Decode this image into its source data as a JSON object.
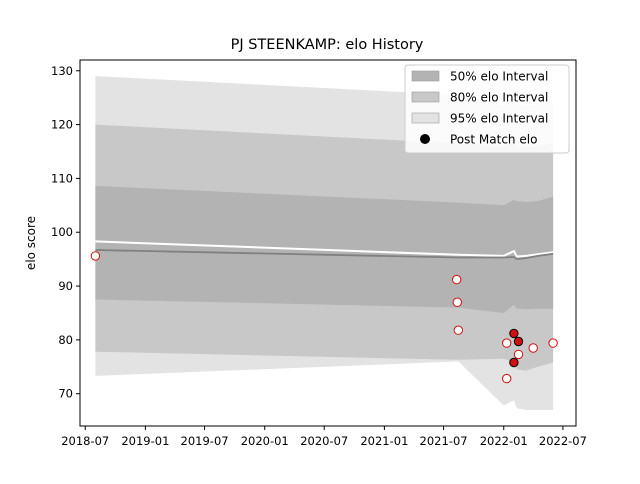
{
  "chart_data": {
    "type": "line",
    "title": "PJ STEENKAMP: elo History",
    "xlabel": "",
    "ylabel": "elo score",
    "xlim": [
      "2018-06-15",
      "2022-08-10"
    ],
    "ylim": [
      64,
      132
    ],
    "x_ticks": [
      "2018-07-01",
      "2019-01-01",
      "2019-07-01",
      "2020-01-01",
      "2020-07-01",
      "2021-01-01",
      "2021-07-01",
      "2022-01-01",
      "2022-07-01"
    ],
    "x_tick_labels": [
      "2018-07",
      "2019-01",
      "2019-07",
      "2020-01",
      "2020-07",
      "2021-01",
      "2021-07",
      "2022-01",
      "2022-07"
    ],
    "y_ticks": [
      70,
      80,
      90,
      100,
      110,
      120,
      130
    ],
    "y_tick_labels": [
      "70",
      "80",
      "90",
      "100",
      "110",
      "120",
      "130"
    ],
    "legend_position": "top-right",
    "legend": [
      {
        "label": "50% elo Interval",
        "kind": "band",
        "color": "#b3b3b3"
      },
      {
        "label": "80% elo Interval",
        "kind": "band",
        "color": "#c8c8c8"
      },
      {
        "label": "95% elo Interval",
        "kind": "band",
        "color": "#e3e3e3"
      },
      {
        "label": "Post Match elo",
        "kind": "marker",
        "color": "#000000"
      }
    ],
    "bands": {
      "x": [
        "2018-08-01",
        "2021-08-15",
        "2022-01-01",
        "2022-02-01",
        "2022-02-10",
        "2022-03-10",
        "2022-04-15",
        "2022-06-01"
      ],
      "p95": [
        [
          73.3,
          129.0
        ],
        [
          76.0,
          125.5
        ],
        [
          67.8,
          123.5
        ],
        [
          68.8,
          124.8
        ],
        [
          67.3,
          123.8
        ],
        [
          67.0,
          123.6
        ],
        [
          67.0,
          123.8
        ],
        [
          67.0,
          124.5
        ]
      ],
      "p80": [
        [
          77.8,
          120.0
        ],
        [
          76.3,
          116.5
        ],
        [
          76.5,
          116.0
        ],
        [
          75.8,
          117.0
        ],
        [
          74.5,
          116.0
        ],
        [
          74.3,
          115.8
        ],
        [
          75.0,
          116.0
        ],
        [
          75.8,
          116.5
        ]
      ],
      "p50": [
        [
          87.5,
          108.6
        ],
        [
          86.0,
          105.5
        ],
        [
          85.0,
          105.0
        ],
        [
          86.5,
          106.0
        ],
        [
          85.8,
          105.8
        ],
        [
          85.7,
          105.6
        ],
        [
          85.8,
          105.8
        ],
        [
          85.8,
          106.6
        ]
      ]
    },
    "series": [
      {
        "style": "white-line",
        "x": [
          "2018-08-01",
          "2021-08-15",
          "2022-01-01",
          "2022-02-01",
          "2022-02-10",
          "2022-03-10",
          "2022-04-15",
          "2022-06-01"
        ],
        "values": [
          98.3,
          95.8,
          95.6,
          96.5,
          95.5,
          95.6,
          95.9,
          96.3
        ]
      },
      {
        "style": "gray-line",
        "x": [
          "2018-08-01",
          "2021-08-15",
          "2022-01-01",
          "2022-02-01",
          "2022-02-10",
          "2022-03-10",
          "2022-04-15",
          "2022-06-01"
        ],
        "values": [
          96.7,
          95.3,
          95.3,
          95.4,
          95.0,
          95.2,
          95.6,
          96.0
        ]
      }
    ],
    "points": [
      {
        "x": "2018-08-01",
        "y": 95.6,
        "filled": false
      },
      {
        "x": "2021-08-10",
        "y": 91.2,
        "filled": false
      },
      {
        "x": "2021-08-12",
        "y": 87.0,
        "filled": false
      },
      {
        "x": "2021-08-15",
        "y": 81.8,
        "filled": false
      },
      {
        "x": "2022-01-10",
        "y": 79.4,
        "filled": false
      },
      {
        "x": "2022-01-10",
        "y": 72.8,
        "filled": false
      },
      {
        "x": "2022-02-01",
        "y": 81.2,
        "filled": true
      },
      {
        "x": "2022-02-01",
        "y": 75.8,
        "filled": true
      },
      {
        "x": "2022-02-15",
        "y": 79.7,
        "filled": true
      },
      {
        "x": "2022-02-15",
        "y": 77.3,
        "filled": false
      },
      {
        "x": "2022-04-01",
        "y": 78.5,
        "filled": false
      },
      {
        "x": "2022-06-01",
        "y": 79.4,
        "filled": false
      }
    ]
  }
}
